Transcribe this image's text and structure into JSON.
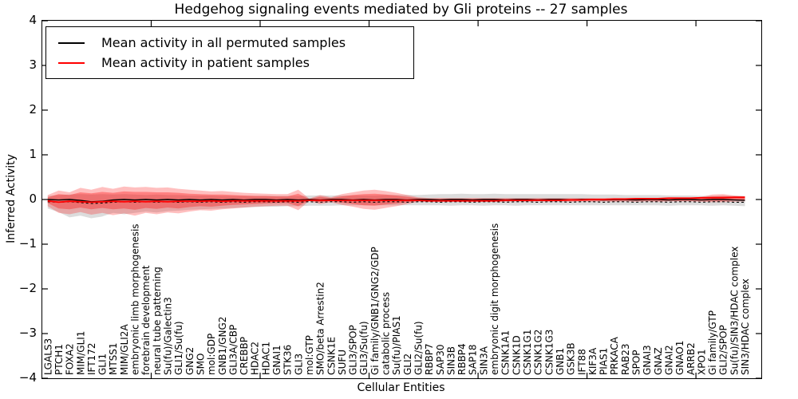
{
  "title": "Hedgehog signaling events mediated by Gli proteins -- 27 samples",
  "axes": {
    "x_label": "Cellular Entities",
    "y_label": "Inferred Activity"
  },
  "legend": {
    "entries": [
      {
        "label": "Mean activity in all permuted samples",
        "color": "#000000"
      },
      {
        "label": "Mean activity in patient samples",
        "color": "#ff0000"
      }
    ]
  },
  "colors": {
    "patient_line": "#ff0000",
    "permuted_line": "#000000",
    "patient_band_outer": "rgba(255,0,0,0.25)",
    "patient_band_inner": "rgba(255,0,0,0.32)",
    "permuted_band": "rgba(128,128,128,0.28)",
    "axis": "#000000"
  },
  "chart_data": {
    "type": "line",
    "title": "Hedgehog signaling events mediated by Gli proteins -- 27 samples",
    "xlabel": "Cellular Entities",
    "ylabel": "Inferred Activity",
    "ylim": [
      -4,
      4
    ],
    "yticks": [
      4,
      3,
      2,
      1,
      0,
      -1,
      -2,
      -3,
      -4
    ],
    "x_units": 66,
    "x_major_ticks_units": [
      10,
      20,
      30,
      40,
      50,
      60
    ],
    "legend_position": "upper left",
    "grid": false,
    "categories": [
      "LGALS3",
      "PTCH1",
      "FOXA2",
      "MIM/GLI1",
      "IFT172",
      "GLI1",
      "MTSS1",
      "MIM/GLI2A",
      "embryonic limb morphogenesis",
      "forebrain development",
      "neural tube patterning",
      "Su(fu)/Galectin3",
      "GLI1/Su(fu)",
      "GNG2",
      "SMO",
      "mol:GDP",
      "GNB1/GNG2",
      "GLI3A/CBP",
      "CREBBP",
      "HDAC2",
      "HDAC1",
      "GNAI1",
      "STK36",
      "GLI3",
      "mol:GTP",
      "SMO/beta Arrestin2",
      "CSNK1E",
      "SUFU",
      "GLI3/SPOP",
      "GLI3/Su(fu)",
      "Gi family/GNB1/GNG2/GDP",
      "catabolic process",
      "Su(fu)/PIAS1",
      "GLI2",
      "GLI2/Su(fu)",
      "RBBP7",
      "SAP30",
      "SIN3B",
      "RBBP4",
      "SAP18",
      "SIN3A",
      "embryonic digit morphogenesis",
      "CSNK1A1",
      "CSNK1D",
      "CSNK1G1",
      "CSNK1G2",
      "CSNK1G3",
      "GNB1",
      "GSK3B",
      "IFT88",
      "KIF3A",
      "PIAS1",
      "PRKACA",
      "RAB23",
      "SPOP",
      "GNAI3",
      "GNAZ",
      "GNAI2",
      "GNAO1",
      "ARRB2",
      "XPO1",
      "Gi family/GTP",
      "GLI2/SPOP",
      "Su(fu)/SIN3/HDAC complex",
      "SIN3/HDAC complex"
    ],
    "series": [
      {
        "name": "Mean activity in all permuted samples",
        "color": "#000000",
        "style": "solid",
        "values": [
          0,
          -0.01,
          0,
          -0.02,
          -0.05,
          -0.04,
          -0.01,
          0,
          -0.01,
          0,
          -0.01,
          0,
          -0.01,
          0,
          -0.01,
          0,
          -0.01,
          0,
          -0.01,
          0,
          0,
          -0.01,
          0,
          -0.01,
          0,
          -0.01,
          0,
          0,
          -0.01,
          0,
          -0.01,
          0,
          0,
          -0.01,
          0,
          0,
          -0.01,
          0,
          0,
          -0.01,
          0,
          0,
          -0.01,
          0,
          0,
          -0.01,
          0,
          0,
          -0.01,
          0,
          0,
          -0.01,
          0,
          0,
          -0.01,
          0,
          0,
          -0.01,
          0,
          0,
          -0.01,
          0,
          0,
          -0.01,
          -0.02
        ]
      },
      {
        "name": "permuted median (dashed)",
        "color": "#000000",
        "style": "dashed",
        "values": [
          -0.05,
          -0.06,
          -0.05,
          -0.07,
          -0.09,
          -0.08,
          -0.06,
          -0.05,
          -0.06,
          -0.05,
          -0.06,
          -0.05,
          -0.06,
          -0.05,
          -0.06,
          -0.05,
          -0.06,
          -0.05,
          -0.06,
          -0.05,
          -0.05,
          -0.06,
          -0.05,
          -0.06,
          -0.05,
          -0.06,
          -0.05,
          -0.05,
          -0.06,
          -0.05,
          -0.06,
          -0.05,
          -0.05,
          -0.06,
          -0.05,
          -0.05,
          -0.06,
          -0.05,
          -0.05,
          -0.06,
          -0.05,
          -0.05,
          -0.06,
          -0.05,
          -0.05,
          -0.06,
          -0.05,
          -0.05,
          -0.06,
          -0.05,
          -0.05,
          -0.06,
          -0.05,
          -0.05,
          -0.06,
          -0.05,
          -0.05,
          -0.06,
          -0.05,
          -0.05,
          -0.06,
          -0.05,
          -0.05,
          -0.06,
          -0.06
        ]
      },
      {
        "name": "Mean activity in patient samples",
        "color": "#ff0000",
        "style": "solid",
        "values": [
          -0.03,
          -0.06,
          -0.04,
          -0.05,
          -0.06,
          -0.05,
          -0.04,
          -0.05,
          -0.04,
          -0.05,
          -0.04,
          -0.05,
          -0.04,
          -0.04,
          -0.04,
          -0.03,
          -0.04,
          -0.03,
          -0.03,
          -0.03,
          -0.03,
          -0.03,
          -0.03,
          -0.03,
          -0.02,
          -0.02,
          -0.02,
          -0.02,
          -0.02,
          -0.02,
          -0.02,
          -0.02,
          -0.02,
          -0.02,
          -0.02,
          -0.03,
          -0.03,
          -0.03,
          -0.03,
          -0.03,
          -0.03,
          -0.03,
          -0.02,
          -0.02,
          -0.02,
          -0.02,
          -0.02,
          -0.02,
          -0.01,
          -0.01,
          0,
          0,
          0.01,
          0.01,
          0.02,
          0.02,
          0.02,
          0.03,
          0.03,
          0.03,
          0.04,
          0.04,
          0.04,
          0.05,
          0.05
        ]
      }
    ],
    "bands": [
      {
        "name": "permuted sample range",
        "color": "rgba(128,128,128,0.28)",
        "upper": [
          0.08,
          0.1,
          0.11,
          0.12,
          0.11,
          0.12,
          0.11,
          0.12,
          0.11,
          0.1,
          0.11,
          0.1,
          0.1,
          0.09,
          0.09,
          0.09,
          0.08,
          0.08,
          0.08,
          0.08,
          0.08,
          0.08,
          0.08,
          0.08,
          0.09,
          0.09,
          0.09,
          0.09,
          0.09,
          0.09,
          0.09,
          0.1,
          0.1,
          0.1,
          0.1,
          0.11,
          0.12,
          0.12,
          0.13,
          0.12,
          0.12,
          0.13,
          0.12,
          0.12,
          0.12,
          0.12,
          0.12,
          0.12,
          0.12,
          0.12,
          0.11,
          0.11,
          0.11,
          0.1,
          0.1,
          0.1,
          0.1,
          0.09,
          0.09,
          0.09,
          0.08,
          0.08,
          0.08,
          0.08,
          0.08
        ],
        "lower": [
          -0.2,
          -0.28,
          -0.4,
          -0.36,
          -0.42,
          -0.38,
          -0.3,
          -0.33,
          -0.3,
          -0.27,
          -0.29,
          -0.26,
          -0.25,
          -0.23,
          -0.22,
          -0.21,
          -0.2,
          -0.19,
          -0.18,
          -0.17,
          -0.16,
          -0.16,
          -0.15,
          -0.15,
          -0.14,
          -0.14,
          -0.14,
          -0.13,
          -0.13,
          -0.13,
          -0.13,
          -0.13,
          -0.13,
          -0.13,
          -0.13,
          -0.13,
          -0.13,
          -0.14,
          -0.13,
          -0.13,
          -0.14,
          -0.13,
          -0.13,
          -0.14,
          -0.13,
          -0.13,
          -0.13,
          -0.13,
          -0.13,
          -0.13,
          -0.13,
          -0.13,
          -0.13,
          -0.13,
          -0.13,
          -0.13,
          -0.13,
          -0.14,
          -0.13,
          -0.13,
          -0.13,
          -0.14,
          -0.13,
          -0.14,
          -0.15
        ]
      },
      {
        "name": "patient range outer",
        "color": "rgba(255,0,0,0.25)",
        "upper": [
          0.1,
          0.2,
          0.16,
          0.26,
          0.22,
          0.28,
          0.24,
          0.29,
          0.27,
          0.28,
          0.26,
          0.27,
          0.24,
          0.22,
          0.2,
          0.18,
          0.19,
          0.17,
          0.15,
          0.14,
          0.13,
          0.12,
          0.12,
          0.22,
          0.02,
          0.1,
          0.05,
          0.12,
          0.16,
          0.2,
          0.22,
          0.19,
          0.15,
          0.1,
          0.05,
          0.03,
          0.03,
          0.03,
          0.03,
          0.03,
          0.03,
          0.03,
          0.03,
          0.03,
          0.03,
          0.03,
          0.03,
          0.03,
          0.03,
          0.03,
          0.03,
          0.03,
          0.03,
          0.03,
          0.03,
          0.03,
          0.03,
          0.03,
          0.03,
          0.04,
          0.06,
          0.11,
          0.12,
          0.09,
          0.07
        ],
        "lower": [
          -0.15,
          -0.3,
          -0.33,
          -0.28,
          -0.34,
          -0.3,
          -0.35,
          -0.31,
          -0.36,
          -0.3,
          -0.33,
          -0.29,
          -0.31,
          -0.27,
          -0.24,
          -0.25,
          -0.22,
          -0.2,
          -0.18,
          -0.16,
          -0.15,
          -0.14,
          -0.14,
          -0.24,
          -0.03,
          -0.1,
          -0.06,
          -0.12,
          -0.16,
          -0.21,
          -0.23,
          -0.19,
          -0.15,
          -0.1,
          -0.05,
          -0.04,
          -0.05,
          -0.04,
          -0.05,
          -0.04,
          -0.05,
          -0.04,
          -0.05,
          -0.04,
          -0.05,
          -0.04,
          -0.05,
          -0.04,
          -0.05,
          -0.04,
          -0.05,
          -0.04,
          -0.05,
          -0.04,
          -0.05,
          -0.04,
          -0.05,
          -0.04,
          -0.04,
          -0.04,
          -0.05,
          -0.06,
          -0.06,
          -0.05,
          -0.04
        ]
      },
      {
        "name": "patient range inner",
        "color": "rgba(255,0,0,0.32)",
        "upper": [
          0.05,
          0.12,
          0.1,
          0.16,
          0.14,
          0.17,
          0.15,
          0.18,
          0.17,
          0.17,
          0.16,
          0.16,
          0.15,
          0.13,
          0.12,
          0.11,
          0.11,
          0.1,
          0.09,
          0.08,
          0.08,
          0.07,
          0.07,
          0.13,
          0.01,
          0.06,
          0.03,
          0.07,
          0.1,
          0.12,
          0.13,
          0.11,
          0.09,
          0.06,
          0.03,
          0.02,
          0.02,
          0.02,
          0.02,
          0.02,
          0.02,
          0.02,
          0.02,
          0.02,
          0.02,
          0.02,
          0.02,
          0.02,
          0.02,
          0.02,
          0.02,
          0.02,
          0.02,
          0.02,
          0.02,
          0.02,
          0.02,
          0.02,
          0.02,
          0.03,
          0.04,
          0.07,
          0.08,
          0.06,
          0.04
        ],
        "lower": [
          -0.08,
          -0.2,
          -0.22,
          -0.18,
          -0.22,
          -0.19,
          -0.22,
          -0.2,
          -0.23,
          -0.19,
          -0.21,
          -0.18,
          -0.2,
          -0.17,
          -0.15,
          -0.16,
          -0.14,
          -0.12,
          -0.11,
          -0.1,
          -0.09,
          -0.08,
          -0.08,
          -0.15,
          -0.02,
          -0.06,
          -0.03,
          -0.07,
          -0.1,
          -0.13,
          -0.14,
          -0.11,
          -0.09,
          -0.06,
          -0.03,
          -0.03,
          -0.03,
          -0.03,
          -0.03,
          -0.03,
          -0.03,
          -0.03,
          -0.03,
          -0.03,
          -0.03,
          -0.03,
          -0.03,
          -0.03,
          -0.03,
          -0.03,
          -0.03,
          -0.03,
          -0.03,
          -0.03,
          -0.03,
          -0.03,
          -0.03,
          -0.03,
          -0.03,
          -0.03,
          -0.03,
          -0.03,
          -0.03,
          -0.02,
          -0.02
        ]
      }
    ]
  }
}
